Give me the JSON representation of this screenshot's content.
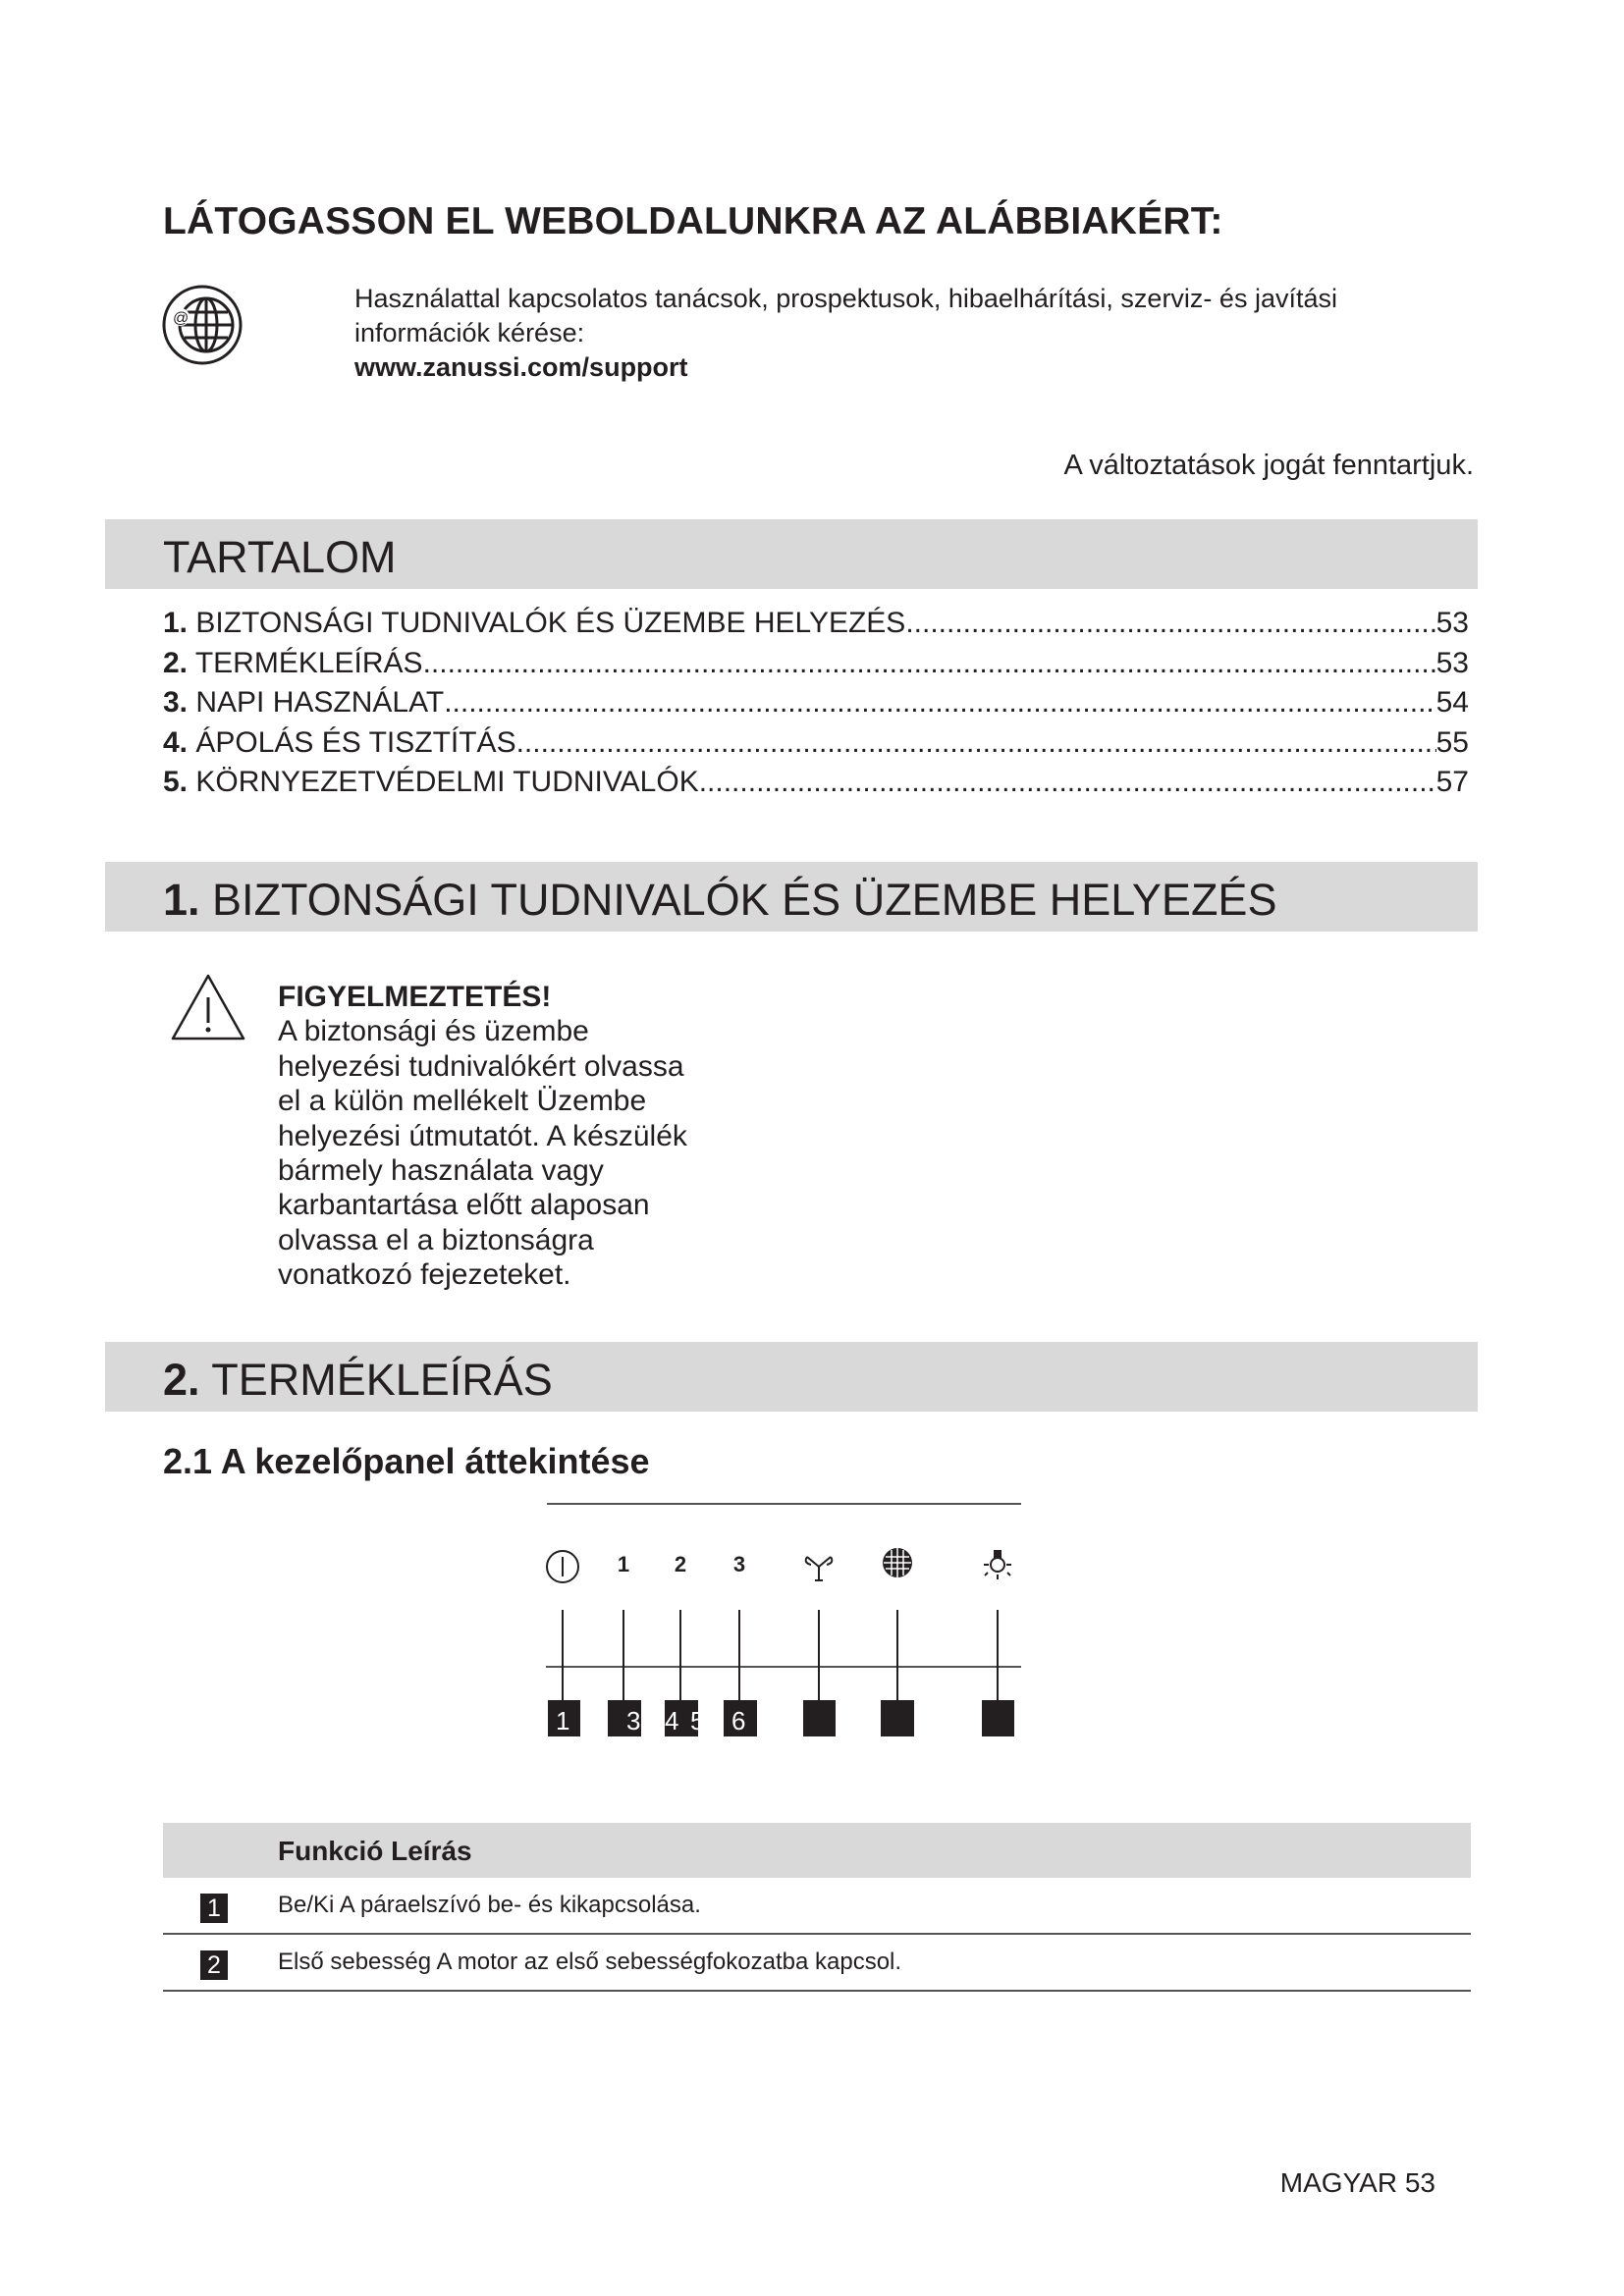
{
  "visit": {
    "heading": "LÁTOGASSON EL WEBOLDALUNKRA AZ ALÁBBIAKÉRT:",
    "icon": "globe-at-icon",
    "line1": "Használattal kapcsolatos tanácsok, prospektusok, hibaelhárítási, szerviz- és javítási",
    "line2": "információk kérése:",
    "url": "www.zanussi.com/support"
  },
  "rights": "A változtatások jogát fenntartjuk.",
  "toc": {
    "title": "TARTALOM",
    "items": [
      {
        "num": "1.",
        "label": "BIZTONSÁGI TUDNIVALÓK ÉS ÜZEMBE HELYEZÉS",
        "page": "53"
      },
      {
        "num": "2.",
        "label": "TERMÉKLEÍRÁS",
        "page": "53"
      },
      {
        "num": "3.",
        "label": "NAPI HASZNÁLAT",
        "page": "54"
      },
      {
        "num": "4.",
        "label": "ÁPOLÁS ÉS TISZTÍTÁS",
        "page": "55"
      },
      {
        "num": "5.",
        "label": "KÖRNYEZETVÉDELMI TUDNIVALÓK",
        "page": "57"
      }
    ]
  },
  "section1": {
    "num": "1.",
    "title": "BIZTONSÁGI TUDNIVALÓK ÉS ÜZEMBE HELYEZÉS",
    "warning_title": "FIGYELMEZTETÉS!",
    "warning_lines": [
      "A biztonsági és üzembe",
      "helyezési tudnivalókért olvassa",
      "el a külön mellékelt Üzembe",
      "helyezési útmutatót. A készülék",
      "bármely használata vagy",
      "karbantartása előtt alaposan",
      "olvassa el a biztonságra",
      "vonatkozó fejezeteket."
    ]
  },
  "section2": {
    "num": "2.",
    "title": "TERMÉKLEÍRÁS",
    "sub": "2.1 A kezelőpanel áttekintése",
    "panel_symbols": [
      "power-icon",
      "1",
      "2",
      "3",
      "fan-icon",
      "filter-icon",
      "light-icon"
    ],
    "panel_callouts": [
      "1",
      "3",
      "4",
      "5",
      "6",
      "",
      "",
      ""
    ],
    "table": {
      "header": "Funkció Leírás",
      "rows": [
        {
          "num": "1",
          "text": "Be/Ki A páraelszívó be- és kikapcsolása."
        },
        {
          "num": "2",
          "text": "Első sebesség A motor az első sebességfokozatba kapcsol."
        }
      ]
    }
  },
  "footer": "MAGYAR 53"
}
